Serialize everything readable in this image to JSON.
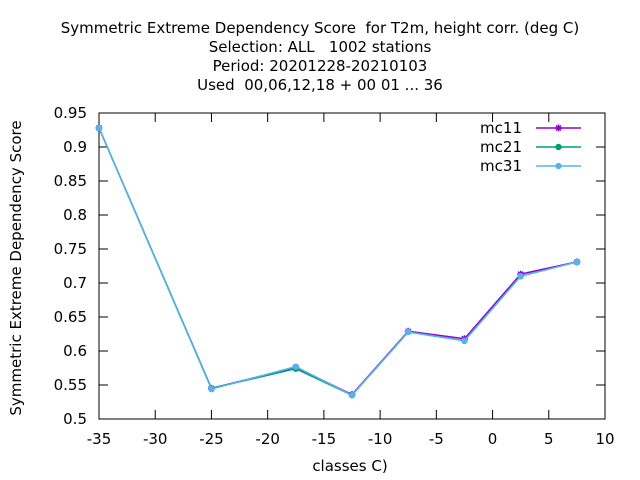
{
  "chart_data": {
    "type": "line",
    "title_lines": [
      "Symmetric Extreme Dependency Score  for T2m, height corr. (deg C)",
      "Selection: ALL   1002 stations",
      "Period: 20201228-20210103",
      "Used  00,06,12,18 + 00 01 ... 36"
    ],
    "xlabel": "classes C)",
    "ylabel": "Symmetric Extreme Dependency Score",
    "xlim": [
      -35,
      10
    ],
    "ylim": [
      0.5,
      0.95
    ],
    "x_ticks": [
      -35,
      -30,
      -25,
      -20,
      -15,
      -10,
      -5,
      0,
      5,
      10
    ],
    "y_ticks": [
      0.5,
      0.55,
      0.6,
      0.65,
      0.7,
      0.75,
      0.8,
      0.85,
      0.9,
      0.95
    ],
    "x_tick_labels": [
      "-35",
      "-30",
      "-25",
      "-20",
      "-15",
      "-10",
      "-5",
      "0",
      "5",
      "10"
    ],
    "y_tick_labels": [
      "0.5",
      "0.55",
      "0.6",
      "0.65",
      "0.7",
      "0.75",
      "0.8",
      "0.85",
      "0.9",
      "0.95"
    ],
    "grid": false,
    "legend_position": "top-right",
    "x": [
      -35,
      -25,
      -17.5,
      -12.5,
      -7.5,
      -2.5,
      2.5,
      7.5
    ],
    "series": [
      {
        "name": "mc11",
        "color": "#9400d3",
        "marker": "plus-cross",
        "values": [
          0.928,
          0.545,
          0.576,
          0.536,
          0.629,
          0.618,
          0.713,
          0.731
        ]
      },
      {
        "name": "mc21",
        "color": "#009e73",
        "marker": "filled-circle",
        "values": [
          0.928,
          0.545,
          0.574,
          0.535,
          0.628,
          0.615,
          0.71,
          0.731
        ]
      },
      {
        "name": "mc31",
        "color": "#56b4e9",
        "marker": "filled-circle",
        "values": [
          0.928,
          0.544,
          0.577,
          0.535,
          0.628,
          0.615,
          0.71,
          0.731
        ]
      }
    ]
  }
}
